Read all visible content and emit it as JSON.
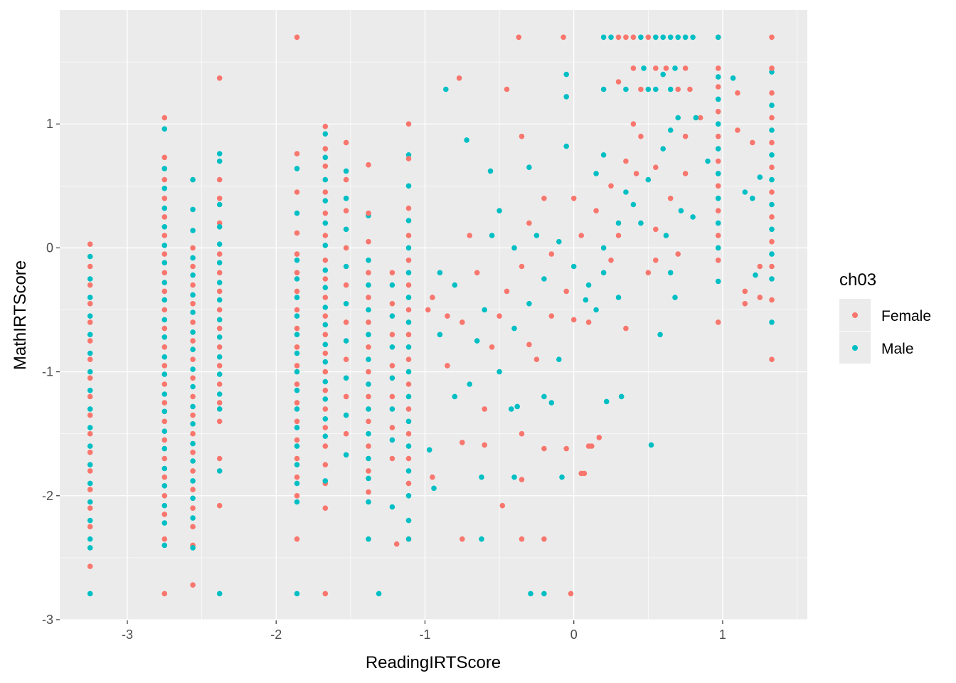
{
  "chart_data": {
    "type": "scatter",
    "xlabel": "ReadingIRTScore",
    "ylabel": "MathIRTScore",
    "xlim": [
      -3.454,
      1.569
    ],
    "ylim": [
      -3.006,
      1.92
    ],
    "xticks": [
      -3,
      -2,
      -1,
      0,
      1
    ],
    "yticks": [
      -3,
      -2,
      -1,
      0,
      1
    ],
    "xtick_labels": [
      "-3",
      "-2",
      "-1",
      "0",
      "1"
    ],
    "ytick_labels": [
      "-3",
      "-2",
      "-1",
      "0",
      "1"
    ],
    "grid": true,
    "legend": {
      "title": "ch03",
      "placement": "right",
      "entries": [
        {
          "label": "Female",
          "color": "#F8766D"
        },
        {
          "label": "Male",
          "color": "#00BFC4"
        }
      ]
    },
    "colors": {
      "F": "#F8766D",
      "M": "#00BFC4"
    },
    "columns": [
      {
        "x": -3.25,
        "F": [
          0.03,
          -0.15,
          -0.3,
          -0.45,
          -0.6,
          -0.75,
          -0.9,
          -1.05,
          -1.2,
          -1.35,
          -1.5,
          -1.65,
          -1.8,
          -1.95,
          -2.1,
          -2.25,
          -2.57
        ],
        "M": [
          -0.07,
          -0.25,
          -0.4,
          -0.55,
          -0.7,
          -0.85,
          -1.0,
          -1.15,
          -1.3,
          -1.45,
          -1.6,
          -1.75,
          -1.9,
          -2.05,
          -2.2,
          -2.35,
          -2.42,
          -2.79
        ]
      },
      {
        "x": -2.75,
        "F": [
          1.05,
          0.73,
          0.55,
          0.4,
          0.25,
          0.1,
          -0.05,
          -0.2,
          -0.35,
          -0.5,
          -0.65,
          -0.8,
          -0.95,
          -1.1,
          -1.25,
          -1.4,
          -1.55,
          -1.7,
          -1.85,
          -2.0,
          -2.15,
          -2.35,
          -2.79
        ],
        "M": [
          0.96,
          0.64,
          0.48,
          0.32,
          0.17,
          0.02,
          -0.12,
          -0.28,
          -0.42,
          -0.58,
          -0.72,
          -0.88,
          -1.02,
          -1.18,
          -1.32,
          -1.48,
          -1.62,
          -1.78,
          -1.92,
          -2.08,
          -2.22,
          -2.4
        ]
      },
      {
        "x": -2.56,
        "F": [
          0.0,
          -0.15,
          -0.3,
          -0.45,
          -0.6,
          -0.75,
          -0.9,
          -1.05,
          -1.2,
          -1.35,
          -1.5,
          -1.65,
          -1.8,
          -1.95,
          -2.1,
          -2.25,
          -2.4,
          -2.72
        ],
        "M": [
          0.55,
          0.31,
          0.14,
          -0.08,
          -0.22,
          -0.38,
          -0.52,
          -0.68,
          -0.82,
          -0.98,
          -1.12,
          -1.28,
          -1.42,
          -1.58,
          -1.72,
          -1.88,
          -2.02,
          -2.18,
          -2.42
        ]
      },
      {
        "x": -2.38,
        "F": [
          1.37,
          0.55,
          0.4,
          0.2,
          -0.05,
          -0.2,
          -0.35,
          -0.5,
          -0.65,
          -0.8,
          -0.95,
          -1.1,
          -1.25,
          -1.4,
          -1.7,
          -2.08
        ],
        "M": [
          0.76,
          0.7,
          0.35,
          0.17,
          0.03,
          -0.12,
          -0.28,
          -0.42,
          -0.58,
          -0.72,
          -0.88,
          -1.02,
          -1.18,
          -1.3,
          -1.8,
          -2.79
        ]
      },
      {
        "x": -1.86,
        "F": [
          1.7,
          0.76,
          0.45,
          0.12,
          -0.05,
          -0.2,
          -0.35,
          -0.5,
          -0.65,
          -0.8,
          -0.95,
          -1.1,
          -1.25,
          -1.4,
          -1.55,
          -1.7,
          -1.85,
          -2.0,
          -2.35
        ],
        "M": [
          0.64,
          0.28,
          -0.1,
          -0.25,
          -0.4,
          -0.55,
          -0.7,
          -0.85,
          -1.0,
          -1.15,
          -1.3,
          -1.45,
          -1.6,
          -1.75,
          -1.9,
          -2.05,
          -2.79
        ]
      },
      {
        "x": -1.67,
        "F": [
          0.98,
          0.8,
          0.66,
          0.45,
          0.28,
          0.1,
          -0.1,
          -0.25,
          -0.4,
          -0.55,
          -0.7,
          -0.85,
          -1.0,
          -1.15,
          -1.3,
          -1.45,
          -1.6,
          -1.75,
          -1.9,
          -2.1,
          -2.79
        ],
        "M": [
          0.92,
          0.73,
          0.55,
          0.38,
          0.2,
          0.02,
          -0.18,
          -0.32,
          -0.48,
          -0.62,
          -0.78,
          -0.92,
          -1.08,
          -1.22,
          -1.38,
          -1.52,
          -1.88
        ]
      },
      {
        "x": -1.53,
        "F": [
          0.85,
          0.55,
          0.3,
          0.0,
          -0.3,
          -0.6,
          -0.9,
          -1.2,
          -1.5
        ],
        "M": [
          0.62,
          0.4,
          0.15,
          -0.15,
          -0.45,
          -0.75,
          -1.05,
          -1.35,
          -1.67
        ]
      },
      {
        "x": -1.38,
        "F": [
          0.67,
          0.28,
          0.05,
          -0.2,
          -0.4,
          -0.6,
          -0.8,
          -1.0,
          -1.2,
          -1.4,
          -1.6,
          -1.8,
          -1.97
        ],
        "M": [
          0.26,
          -0.1,
          -0.3,
          -0.5,
          -0.7,
          -0.9,
          -1.1,
          -1.3,
          -1.5,
          -1.7,
          -1.86,
          -2.05,
          -2.35
        ]
      },
      {
        "x": -1.22,
        "F": [
          -0.2,
          -0.45,
          -0.7,
          -0.95,
          -1.2,
          -1.45,
          -1.7
        ],
        "M": [
          -0.3,
          -0.55,
          -0.8,
          -1.05,
          -1.3,
          -1.55,
          -2.09
        ]
      },
      {
        "x": -1.11,
        "F": [
          1.0,
          0.72,
          0.32,
          0.1,
          -0.1,
          -0.3,
          -0.5,
          -0.7,
          -0.9,
          -1.1,
          -1.3,
          -1.5,
          -1.7,
          -1.9,
          -2.35
        ],
        "M": [
          0.75,
          0.5,
          0.22,
          0.0,
          -0.2,
          -0.4,
          -0.6,
          -0.8,
          -1.0,
          -1.2,
          -1.4,
          -1.6,
          -1.8,
          -2.0,
          -2.2,
          -2.35
        ]
      },
      {
        "x": 0.97,
        "F": [
          1.7,
          1.45,
          1.3,
          1.1,
          0.9,
          0.7,
          0.5,
          0.3,
          0.1,
          -0.1,
          -0.6
        ],
        "M": [
          1.7,
          1.38,
          1.2,
          1.0,
          0.8,
          0.6,
          0.4,
          0.2,
          0.0,
          -0.27
        ]
      },
      {
        "x": 1.33,
        "F": [
          1.7,
          1.45,
          1.25,
          1.05,
          0.85,
          0.65,
          0.45,
          0.25,
          0.05,
          -0.15,
          -0.42,
          -0.9
        ],
        "M": [
          1.42,
          1.15,
          0.95,
          0.75,
          0.55,
          0.35,
          0.15,
          -0.05,
          -0.25,
          -0.6
        ]
      }
    ],
    "points": [
      [
        -0.95,
        -0.4,
        "F"
      ],
      [
        -0.9,
        -0.7,
        "M"
      ],
      [
        -0.85,
        -0.95,
        "F"
      ],
      [
        -0.8,
        -0.3,
        "M"
      ],
      [
        -0.75,
        -0.6,
        "F"
      ],
      [
        -0.7,
        -1.1,
        "M"
      ],
      [
        -0.65,
        -0.2,
        "F"
      ],
      [
        -0.6,
        -0.5,
        "M"
      ],
      [
        -0.55,
        -0.8,
        "F"
      ],
      [
        -0.5,
        -1.0,
        "M"
      ],
      [
        -0.45,
        -0.35,
        "F"
      ],
      [
        -0.4,
        -0.65,
        "M"
      ],
      [
        -0.35,
        -0.15,
        "F"
      ],
      [
        -0.3,
        -0.45,
        "M"
      ],
      [
        -0.25,
        -0.9,
        "F"
      ],
      [
        -0.2,
        -0.25,
        "M"
      ],
      [
        -0.15,
        -0.55,
        "F"
      ],
      [
        -0.1,
        0.05,
        "M"
      ],
      [
        -0.05,
        -0.35,
        "F"
      ],
      [
        0.0,
        -0.15,
        "M"
      ],
      [
        0.05,
        0.1,
        "F"
      ],
      [
        0.1,
        -0.3,
        "M"
      ],
      [
        0.15,
        0.3,
        "F"
      ],
      [
        0.2,
        0.0,
        "M"
      ],
      [
        0.25,
        0.5,
        "F"
      ],
      [
        0.3,
        0.2,
        "M"
      ],
      [
        0.35,
        0.7,
        "F"
      ],
      [
        0.4,
        0.35,
        "M"
      ],
      [
        0.45,
        0.9,
        "F"
      ],
      [
        0.5,
        0.55,
        "M"
      ],
      [
        0.55,
        0.15,
        "F"
      ],
      [
        0.6,
        0.8,
        "M"
      ],
      [
        0.65,
        0.4,
        "F"
      ],
      [
        0.7,
        1.05,
        "M"
      ],
      [
        0.75,
        0.6,
        "F"
      ],
      [
        0.8,
        0.25,
        "M"
      ],
      [
        0.5,
        -0.2,
        "F"
      ],
      [
        0.3,
        -0.4,
        "M"
      ],
      [
        0.1,
        -0.6,
        "F"
      ],
      [
        -0.2,
        -1.2,
        "M"
      ],
      [
        -0.3,
        0.2,
        "F"
      ],
      [
        -0.5,
        0.3,
        "M"
      ],
      [
        -0.7,
        0.1,
        "F"
      ],
      [
        -0.4,
        0.0,
        "M"
      ],
      [
        0.0,
        0.4,
        "F"
      ],
      [
        0.2,
        0.75,
        "M"
      ],
      [
        0.4,
        1.0,
        "F"
      ],
      [
        -0.1,
        -0.9,
        "M"
      ],
      [
        -0.6,
        -1.3,
        "F"
      ],
      [
        -0.35,
        -1.5,
        "F"
      ],
      [
        -0.15,
        -1.25,
        "M"
      ],
      [
        -0.05,
        -1.62,
        "F"
      ],
      [
        0.05,
        -1.82,
        "F"
      ],
      [
        0.1,
        -1.6,
        "F"
      ],
      [
        -0.75,
        -1.57,
        "F"
      ],
      [
        -0.95,
        -1.85,
        "F"
      ],
      [
        -0.75,
        -2.35,
        "F"
      ],
      [
        -0.35,
        -2.35,
        "F"
      ],
      [
        -0.2,
        -2.35,
        "F"
      ],
      [
        -0.6,
        -1.59,
        "F"
      ],
      [
        -0.48,
        -2.08,
        "F"
      ],
      [
        -0.77,
        1.37,
        "F"
      ],
      [
        -0.45,
        1.28,
        "F"
      ],
      [
        -0.35,
        0.9,
        "F"
      ],
      [
        -0.3,
        0.65,
        "M"
      ],
      [
        -0.05,
        0.82,
        "M"
      ],
      [
        0.3,
        1.34,
        "F"
      ],
      [
        0.4,
        1.45,
        "F"
      ],
      [
        0.5,
        1.28,
        "M"
      ],
      [
        0.6,
        1.4,
        "M"
      ],
      [
        0.7,
        1.28,
        "F"
      ],
      [
        0.75,
        1.45,
        "F"
      ],
      [
        -0.02,
        -2.79,
        "F"
      ],
      [
        -1.19,
        -2.39,
        "F"
      ],
      [
        0.12,
        -1.6,
        "F"
      ],
      [
        0.35,
        -0.65,
        "F"
      ],
      [
        0.85,
        1.05,
        "F"
      ],
      [
        0.9,
        0.7,
        "M"
      ],
      [
        1.1,
        0.95,
        "F"
      ],
      [
        1.15,
        -0.35,
        "F"
      ],
      [
        1.15,
        -0.45,
        "F"
      ],
      [
        1.1,
        1.25,
        "F"
      ],
      [
        1.2,
        0.85,
        "F"
      ],
      [
        1.25,
        -0.4,
        "F"
      ],
      [
        1.25,
        -0.15,
        "F"
      ],
      [
        1.15,
        0.45,
        "M"
      ],
      [
        1.2,
        0.4,
        "M"
      ],
      [
        1.25,
        0.57,
        "M"
      ],
      [
        1.22,
        -0.22,
        "M"
      ],
      [
        1.07,
        1.37,
        "M"
      ],
      [
        -0.86,
        1.28,
        "M"
      ],
      [
        -0.72,
        0.87,
        "M"
      ],
      [
        -0.56,
        0.62,
        "M"
      ],
      [
        -0.05,
        1.4,
        "M"
      ],
      [
        -0.05,
        1.22,
        "M"
      ],
      [
        -0.2,
        0.4,
        "F"
      ],
      [
        -0.25,
        0.1,
        "M"
      ],
      [
        0.15,
        -0.5,
        "M"
      ],
      [
        0.25,
        -0.1,
        "F"
      ],
      [
        0.45,
        0.2,
        "M"
      ],
      [
        0.55,
        0.65,
        "F"
      ],
      [
        0.65,
        0.95,
        "M"
      ],
      [
        0.35,
        0.45,
        "M"
      ],
      [
        0.15,
        0.6,
        "M"
      ],
      [
        -0.15,
        -0.05,
        "F"
      ],
      [
        -0.5,
        -0.55,
        "F"
      ],
      [
        -0.65,
        -0.75,
        "M"
      ],
      [
        -0.85,
        -0.55,
        "F"
      ],
      [
        -0.9,
        -0.2,
        "M"
      ],
      [
        -0.98,
        -0.5,
        "F"
      ],
      [
        -0.8,
        -1.2,
        "M"
      ],
      [
        -0.42,
        -1.3,
        "M"
      ],
      [
        -0.38,
        -1.28,
        "M"
      ],
      [
        -0.3,
        -0.78,
        "F"
      ],
      [
        0.0,
        -0.58,
        "F"
      ],
      [
        0.08,
        -0.42,
        "M"
      ],
      [
        0.2,
        -0.2,
        "M"
      ],
      [
        0.3,
        0.1,
        "F"
      ],
      [
        0.42,
        0.6,
        "F"
      ],
      [
        0.62,
        0.1,
        "M"
      ],
      [
        0.7,
        -0.05,
        "F"
      ],
      [
        0.65,
        -0.2,
        "M"
      ],
      [
        0.58,
        -0.7,
        "M"
      ],
      [
        0.52,
        -1.59,
        "M"
      ],
      [
        0.32,
        -1.2,
        "M"
      ],
      [
        0.22,
        -1.24,
        "M"
      ],
      [
        0.17,
        -1.53,
        "F"
      ],
      [
        0.07,
        -1.82,
        "F"
      ],
      [
        -0.08,
        -1.85,
        "M"
      ],
      [
        -0.2,
        -1.62,
        "F"
      ],
      [
        -0.35,
        -1.87,
        "F"
      ],
      [
        -0.4,
        -1.85,
        "M"
      ],
      [
        -0.62,
        -1.85,
        "M"
      ],
      [
        -0.62,
        -2.35,
        "M"
      ],
      [
        -0.94,
        -1.94,
        "M"
      ],
      [
        -0.97,
        -1.63,
        "M"
      ],
      [
        -0.29,
        -2.79,
        "M"
      ],
      [
        -0.2,
        -2.79,
        "M"
      ],
      [
        -1.31,
        -2.79,
        "M"
      ],
      [
        0.35,
        1.7,
        "F"
      ],
      [
        0.2,
        1.7,
        "M"
      ],
      [
        0.25,
        1.7,
        "M"
      ],
      [
        0.3,
        1.7,
        "F"
      ],
      [
        0.4,
        1.7,
        "F"
      ],
      [
        0.45,
        1.7,
        "M"
      ],
      [
        0.5,
        1.7,
        "F"
      ],
      [
        0.55,
        1.7,
        "M"
      ],
      [
        0.6,
        1.7,
        "M"
      ],
      [
        0.65,
        1.7,
        "M"
      ],
      [
        0.7,
        1.7,
        "M"
      ],
      [
        0.75,
        1.7,
        "M"
      ],
      [
        0.8,
        1.7,
        "M"
      ],
      [
        -0.37,
        1.7,
        "F"
      ],
      [
        -0.07,
        1.7,
        "F"
      ],
      [
        0.2,
        1.28,
        "M"
      ],
      [
        0.35,
        1.28,
        "M"
      ],
      [
        0.45,
        1.28,
        "F"
      ],
      [
        0.55,
        1.28,
        "M"
      ],
      [
        0.65,
        1.28,
        "M"
      ],
      [
        0.78,
        1.28,
        "F"
      ],
      [
        0.47,
        1.45,
        "M"
      ],
      [
        0.55,
        1.45,
        "F"
      ],
      [
        0.62,
        1.45,
        "F"
      ],
      [
        0.68,
        1.45,
        "M"
      ],
      [
        0.82,
        1.05,
        "M"
      ],
      [
        0.75,
        0.9,
        "F"
      ],
      [
        0.72,
        0.3,
        "M"
      ],
      [
        0.55,
        -0.1,
        "F"
      ],
      [
        0.68,
        -0.4,
        "M"
      ],
      [
        -0.55,
        0.1,
        "M"
      ]
    ]
  }
}
